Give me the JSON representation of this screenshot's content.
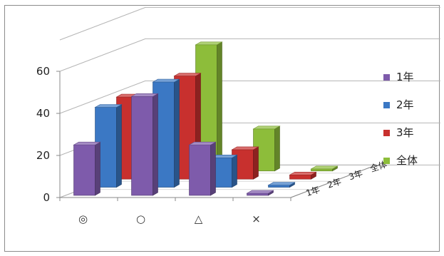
{
  "chart_data": {
    "type": "bar",
    "subtype": "3d-clustered-depth",
    "categories": [
      "◎",
      "○",
      "△",
      "×"
    ],
    "y_ticks": [
      "0",
      "20",
      "40",
      "60"
    ],
    "ylim": [
      0,
      60
    ],
    "grid": true,
    "legend_position": "right",
    "series": [
      {
        "name": "1年",
        "color": "#7e5bab",
        "values": [
          24,
          47,
          24,
          1
        ]
      },
      {
        "name": "2年",
        "color": "#3b78c4",
        "values": [
          38,
          50,
          14,
          1
        ]
      },
      {
        "name": "3年",
        "color": "#c8302e",
        "values": [
          39,
          49,
          14,
          2
        ]
      },
      {
        "name": "全体",
        "color": "#8dbd3a",
        "values": [
          30,
          60,
          20,
          1
        ]
      }
    ],
    "depth_labels": [
      "1年",
      "2年",
      "3年",
      "全体"
    ],
    "legend": [
      "1年",
      "2年",
      "3年",
      "全体"
    ]
  }
}
